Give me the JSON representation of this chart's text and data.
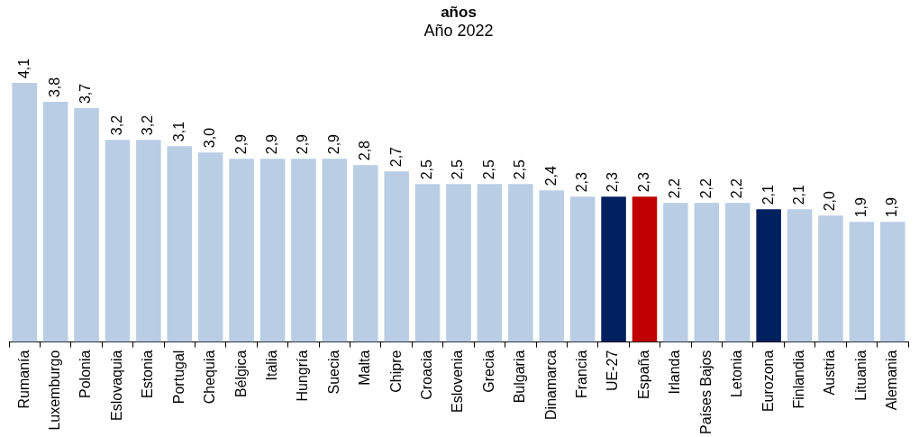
{
  "chart_data": {
    "type": "bar",
    "title": "años",
    "subtitle": "Año 2022",
    "categories": [
      "Rumanía",
      "Luxemburgo",
      "Polonia",
      "Eslovaquia",
      "Estonia",
      "Portugal",
      "Chequia",
      "Bélgica",
      "Italia",
      "Hungría",
      "Suecia",
      "Malta",
      "Chipre",
      "Croacia",
      "Eslovenia",
      "Grecia",
      "Bulgaria",
      "Dinamarca",
      "Francia",
      "UE-27",
      "España",
      "Irlanda",
      "Países Bajos",
      "Letonia",
      "Eurozona",
      "Finlandia",
      "Austria",
      "Lituania",
      "Alemania"
    ],
    "values": [
      4.1,
      3.8,
      3.7,
      3.2,
      3.2,
      3.1,
      3.0,
      2.9,
      2.9,
      2.9,
      2.9,
      2.8,
      2.7,
      2.5,
      2.5,
      2.5,
      2.5,
      2.4,
      2.3,
      2.3,
      2.3,
      2.2,
      2.2,
      2.2,
      2.1,
      2.1,
      2.0,
      1.9,
      1.9
    ],
    "value_labels": [
      "4,1",
      "3,8",
      "3,7",
      "3,2",
      "3,2",
      "3,1",
      "3,0",
      "2,9",
      "2,9",
      "2,9",
      "2,9",
      "2,8",
      "2,7",
      "2,5",
      "2,5",
      "2,5",
      "2,5",
      "2,4",
      "2,3",
      "2,3",
      "2,3",
      "2,2",
      "2,2",
      "2,2",
      "2,1",
      "2,1",
      "2,0",
      "1,9",
      "1,9"
    ],
    "colors": [
      "#b9cde5",
      "#b9cde5",
      "#b9cde5",
      "#b9cde5",
      "#b9cde5",
      "#b9cde5",
      "#b9cde5",
      "#b9cde5",
      "#b9cde5",
      "#b9cde5",
      "#b9cde5",
      "#b9cde5",
      "#b9cde5",
      "#b9cde5",
      "#b9cde5",
      "#b9cde5",
      "#b9cde5",
      "#b9cde5",
      "#b9cde5",
      "#002060",
      "#c00000",
      "#b9cde5",
      "#b9cde5",
      "#b9cde5",
      "#002060",
      "#b9cde5",
      "#b9cde5",
      "#b9cde5",
      "#b9cde5"
    ],
    "tick_labels": "x",
    "grid": false,
    "legend": false
  }
}
